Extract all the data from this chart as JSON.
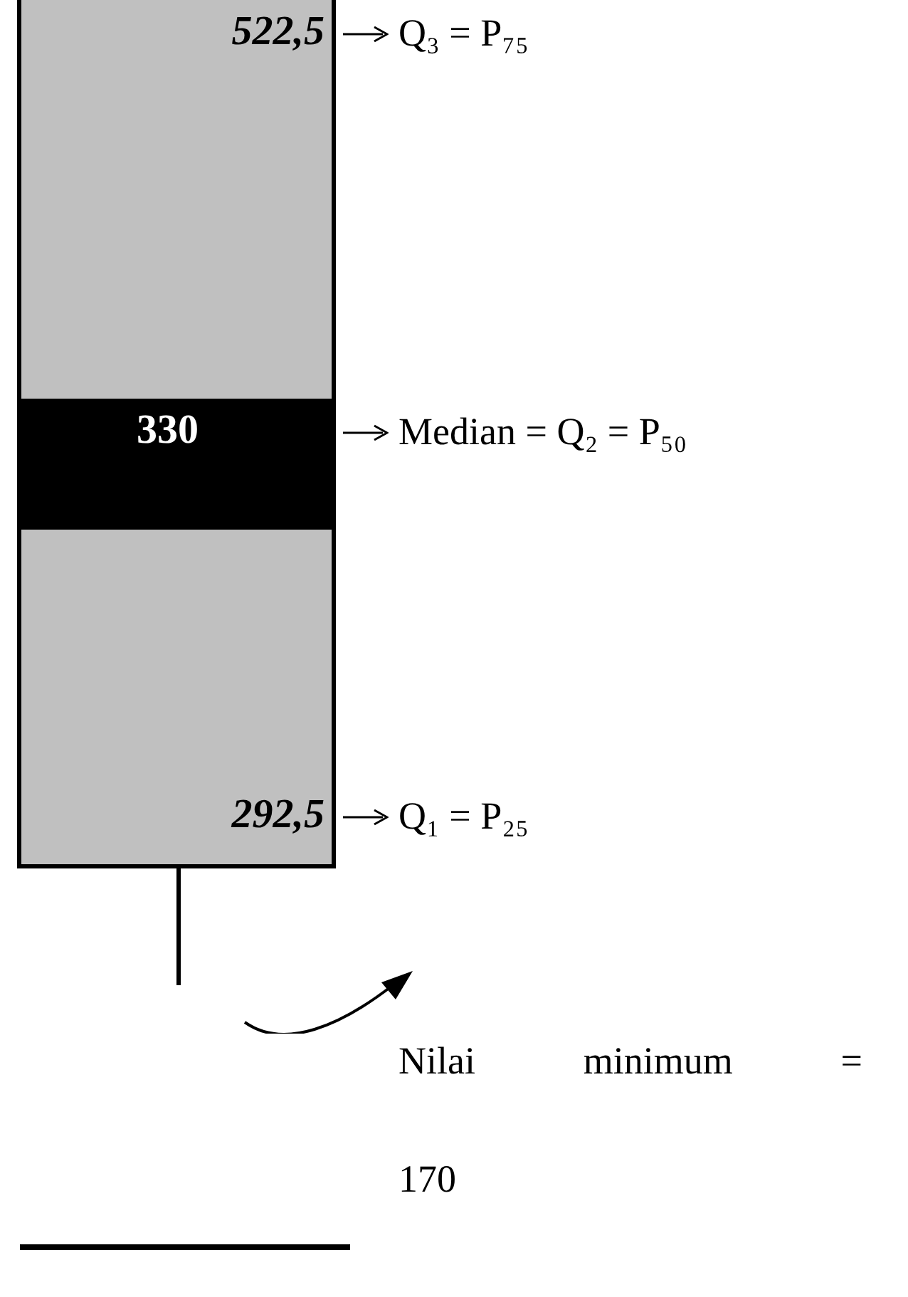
{
  "chart_data": {
    "type": "other",
    "categories": [
      "Q₃ = P₇₅",
      "Median = Q₂ = P₅₀",
      "Q₁ = P₂₅",
      "Nilai minimum ="
    ],
    "values": [
      522.5,
      330,
      292.5,
      170
    ],
    "value_labels": [
      "522,5",
      "330",
      "292,5",
      "170"
    ]
  }
}
